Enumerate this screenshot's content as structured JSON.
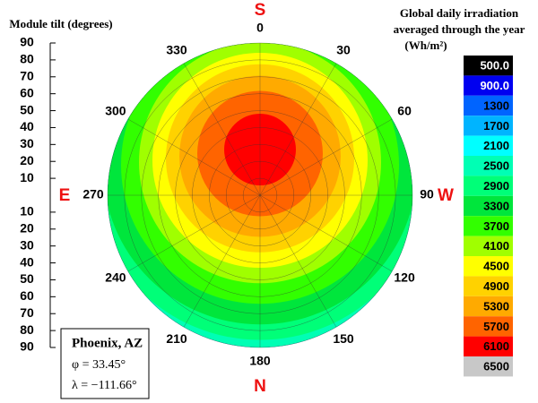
{
  "chart_data": {
    "type": "polar-contour",
    "tilt_axis_title": "Module tilt (degrees)",
    "tilt_ticks_upper": [
      90,
      80,
      70,
      60,
      50,
      40,
      30,
      20,
      10
    ],
    "tilt_ticks_lower": [
      10,
      20,
      30,
      40,
      50,
      60,
      70,
      80,
      90
    ],
    "tilt_lim": [
      0,
      90
    ],
    "azimuth_ticks": [
      0,
      30,
      60,
      90,
      120,
      150,
      180,
      210,
      240,
      270,
      300,
      330
    ],
    "compass": {
      "top": "S",
      "right": "W",
      "bottom": "N",
      "left": "E"
    },
    "colorbar": {
      "title": [
        "Global daily irradiation",
        "averaged through the year",
        "(Wh/m²)"
      ],
      "values": [
        {
          "value": 500,
          "label": "500.0"
        },
        {
          "value": 900,
          "label": "900.0"
        },
        1300,
        1700,
        2100,
        2500,
        2900,
        3300,
        3700,
        4100,
        4500,
        4900,
        5300,
        5700,
        6100,
        6500
      ],
      "colors": [
        "#000000",
        "#0000f0",
        "#0064ff",
        "#00b4ff",
        "#00ffff",
        "#00ffb4",
        "#00ff78",
        "#00e63c",
        "#32ff00",
        "#a0ff00",
        "#ffff00",
        "#ffd200",
        "#ffaa00",
        "#ff6400",
        "#ff0000",
        "#c8c8c8"
      ]
    },
    "location": {
      "name": "Phoenix, AZ",
      "latitude": "φ = 33.45°",
      "longitude": "λ = −111.66°"
    }
  }
}
